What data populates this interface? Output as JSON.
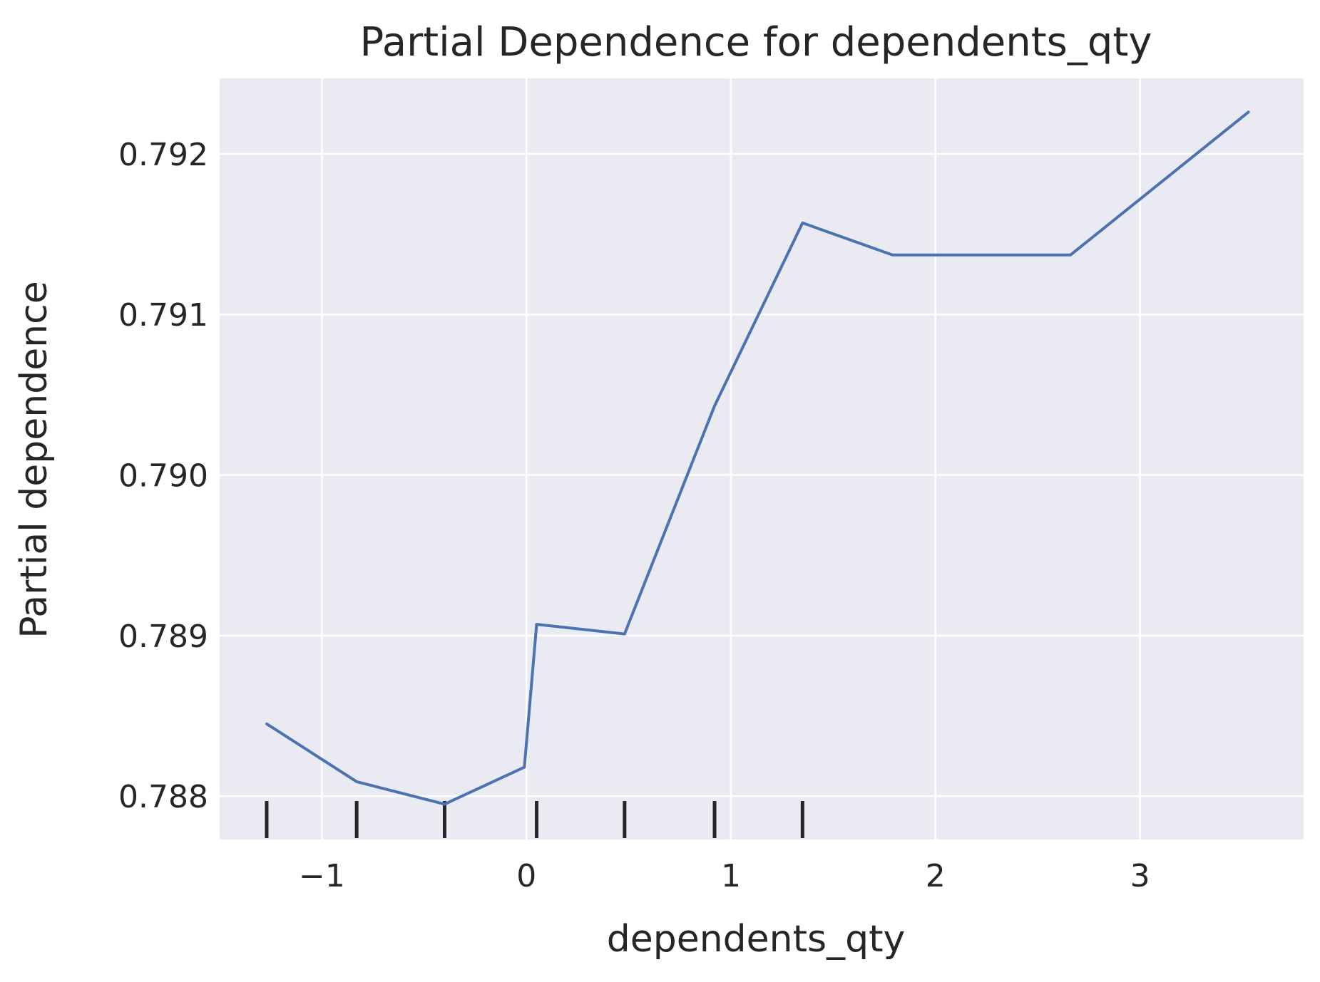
{
  "chart_data": {
    "type": "line",
    "title": "Partial Dependence for dependents_qty",
    "xlabel": "dependents_qty",
    "ylabel": "Partial dependence",
    "xlim": [
      -1.5,
      3.8
    ],
    "ylim": [
      0.78773,
      0.79247
    ],
    "x_ticks": [
      -1,
      0,
      1,
      2,
      3
    ],
    "x_tick_labels": [
      "−1",
      "0",
      "1",
      "2",
      "3"
    ],
    "y_ticks": [
      0.788,
      0.789,
      0.79,
      0.791,
      0.792
    ],
    "y_tick_labels": [
      "0.788",
      "0.789",
      "0.790",
      "0.791",
      "0.792"
    ],
    "grid": true,
    "background_color": "#eaeaf2",
    "line_color": "#4c72b0",
    "rug_color": "#262626",
    "series": [
      {
        "x": [
          -1.27,
          -0.83,
          -0.4,
          -0.01,
          0.05,
          0.48,
          0.92,
          1.35,
          1.79,
          2.66,
          3.53
        ],
        "y": [
          0.78845,
          0.78809,
          0.78795,
          0.78818,
          0.78907,
          0.78901,
          0.79043,
          0.79157,
          0.79137,
          0.79137,
          0.79226
        ]
      }
    ],
    "rug_x": [
      -1.27,
      -0.83,
      -0.4,
      0.05,
      0.48,
      0.92,
      1.35
    ]
  }
}
